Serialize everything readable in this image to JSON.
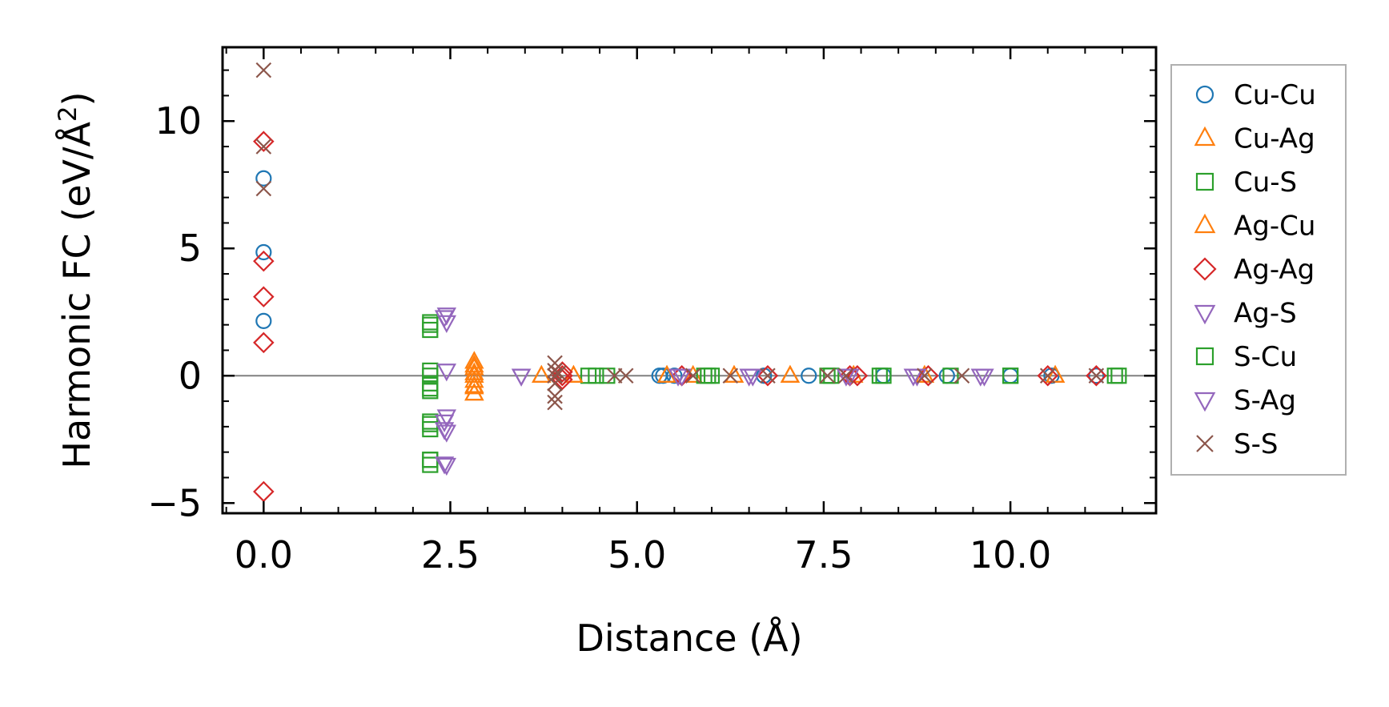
{
  "chart_data": {
    "type": "scatter",
    "title": "",
    "xlabel": "Distance (Å)",
    "ylabel": {
      "main": "Harmonic FC (eV/Å",
      "sup": "2",
      "tail": ")"
    },
    "xlim": [
      -0.55,
      11.95
    ],
    "ylim": [
      -5.4,
      12.9
    ],
    "xticks": [
      0.0,
      2.5,
      5.0,
      7.5,
      10.0
    ],
    "xtick_labels": [
      "0.0",
      "2.5",
      "5.0",
      "7.5",
      "10.0"
    ],
    "yticks": [
      -5,
      0,
      5,
      10
    ],
    "ytick_labels": [
      "−5",
      "0",
      "5",
      "10"
    ],
    "grid": false,
    "zero_line": true,
    "legend": {
      "position": "right-outside"
    },
    "series": [
      {
        "name": "Cu-Cu",
        "marker": "circle",
        "color": "#1f77b4",
        "x": [
          0.0,
          0.0,
          0.0,
          5.3,
          5.35,
          5.5,
          6.7,
          7.3,
          8.3,
          9.15,
          10.0,
          10.55,
          11.15
        ],
        "y": [
          7.75,
          4.85,
          2.15,
          0.0,
          0.0,
          0.0,
          0.0,
          0.0,
          0.0,
          0.0,
          0.0,
          0.0,
          0.0
        ]
      },
      {
        "name": "Cu-Ag",
        "marker": "triangle-up",
        "color": "#ff7f0e",
        "x": [
          2.82,
          2.82,
          2.82,
          2.82,
          2.82,
          2.82,
          3.72,
          4.15,
          5.4,
          5.75,
          6.3,
          7.05,
          7.9,
          8.85,
          10.6
        ],
        "y": [
          0.55,
          0.3,
          0.1,
          -0.2,
          -0.45,
          -0.7,
          0.0,
          0.0,
          0.0,
          0.0,
          0.0,
          0.0,
          0.0,
          0.0,
          0.0
        ]
      },
      {
        "name": "Cu-S",
        "marker": "square",
        "color": "#2ca02c",
        "x": [
          2.23,
          2.23,
          2.23,
          2.23,
          2.23,
          2.23,
          2.23,
          2.23,
          2.23,
          4.35,
          4.6,
          5.9,
          6.0,
          7.6,
          8.3,
          9.2,
          10.0,
          11.45
        ],
        "y": [
          2.1,
          1.8,
          0.2,
          -0.3,
          -0.6,
          -1.8,
          -2.1,
          -3.3,
          -3.5,
          0.0,
          0.0,
          0.0,
          0.0,
          0.0,
          0.0,
          0.0,
          0.0,
          0.0
        ]
      },
      {
        "name": "Ag-Cu",
        "marker": "triangle-up",
        "color": "#ff7f0e",
        "x": [
          2.82,
          2.82,
          2.82,
          2.82,
          3.72,
          4.15,
          5.4,
          6.3,
          7.05,
          7.9,
          8.85,
          10.6
        ],
        "y": [
          0.4,
          0.0,
          -0.4,
          -0.7,
          0.0,
          0.0,
          0.0,
          0.0,
          0.0,
          0.0,
          0.0,
          0.0
        ]
      },
      {
        "name": "Ag-Ag",
        "marker": "diamond",
        "color": "#d62728",
        "x": [
          0.0,
          0.0,
          0.0,
          0.0,
          0.0,
          4.0,
          4.0,
          4.0,
          5.6,
          6.75,
          7.85,
          7.95,
          8.9,
          10.5,
          11.15
        ],
        "y": [
          9.2,
          4.5,
          3.1,
          1.3,
          -4.55,
          0.15,
          0.0,
          -0.15,
          0.0,
          0.0,
          0.0,
          0.0,
          0.0,
          0.0,
          0.0
        ]
      },
      {
        "name": "Ag-S",
        "marker": "triangle-down",
        "color": "#9467bd",
        "x": [
          2.45,
          2.45,
          2.45,
          2.45,
          2.45,
          2.45,
          3.45,
          5.6,
          6.55,
          7.85,
          8.75,
          9.65
        ],
        "y": [
          2.4,
          2.1,
          0.2,
          -1.6,
          -2.2,
          -3.5,
          0.0,
          0.0,
          0.0,
          0.0,
          0.0,
          0.0
        ]
      },
      {
        "name": "S-Cu",
        "marker": "square",
        "color": "#2ca02c",
        "x": [
          2.23,
          2.23,
          2.23,
          2.23,
          2.23,
          4.45,
          5.95,
          7.55,
          8.25,
          10.0,
          11.4
        ],
        "y": [
          2.0,
          0.0,
          -0.5,
          -1.9,
          -3.3,
          0.0,
          0.0,
          0.0,
          0.0,
          0.0,
          0.0
        ]
      },
      {
        "name": "S-Ag",
        "marker": "triangle-down",
        "color": "#9467bd",
        "x": [
          2.42,
          2.42,
          2.42,
          2.42,
          3.45,
          5.55,
          6.5,
          7.8,
          8.7,
          9.6
        ],
        "y": [
          2.3,
          -1.8,
          -2.1,
          -3.45,
          0.0,
          0.0,
          0.0,
          0.0,
          0.0,
          0.0
        ]
      },
      {
        "name": "S-S",
        "marker": "x",
        "color": "#8c564b",
        "x": [
          0.0,
          0.0,
          0.0,
          3.9,
          3.9,
          3.9,
          3.9,
          3.9,
          3.9,
          3.95,
          4.7,
          4.85,
          5.75,
          6.25,
          6.75,
          7.55,
          7.8,
          8.85,
          9.35,
          10.5,
          11.15
        ],
        "y": [
          12.0,
          9.0,
          7.35,
          0.5,
          0.2,
          0.0,
          -0.3,
          -0.8,
          -1.05,
          0.1,
          0.0,
          0.0,
          0.0,
          0.0,
          0.0,
          0.0,
          0.0,
          0.0,
          0.0,
          0.0,
          0.0
        ]
      }
    ]
  }
}
